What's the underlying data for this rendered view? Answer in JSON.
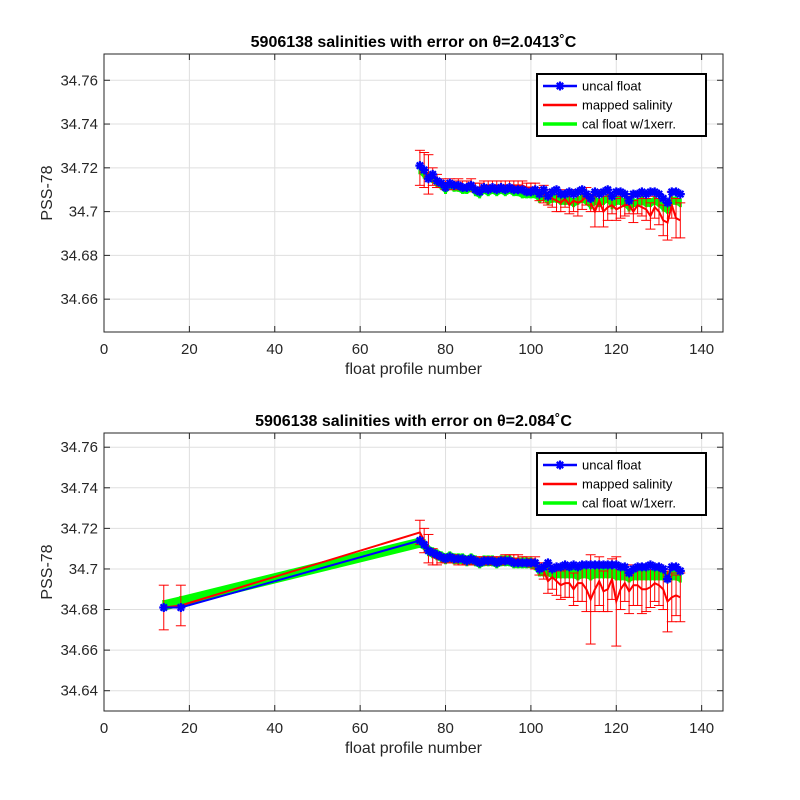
{
  "chart_data": [
    {
      "type": "line",
      "title": "5906138 salinities with error on θ=2.0413˚C",
      "xlabel": "float profile number",
      "ylabel": "PSS-78",
      "xlim": [
        0,
        145
      ],
      "ylim": [
        34.645,
        34.772
      ],
      "xticks": [
        0,
        20,
        40,
        60,
        80,
        100,
        120,
        140
      ],
      "xtick_labels": [
        "0",
        "20",
        "40",
        "60",
        "80",
        "100",
        "120",
        "140"
      ],
      "yticks": [
        34.66,
        34.68,
        34.7,
        34.72,
        34.74,
        34.76
      ],
      "ytick_labels": [
        "34.66",
        "34.68",
        "34.7",
        "34.72",
        "34.74",
        "34.76"
      ],
      "grid": true,
      "legend": {
        "position": "top-right",
        "entries": [
          "uncal float",
          "mapped salinity",
          "cal float w/1xerr."
        ]
      },
      "colors": {
        "uncal": "#0000ff",
        "mapped": "#ff0000",
        "cal": "#00ff00"
      },
      "x": [
        74,
        75,
        76,
        77,
        78,
        79,
        80,
        81,
        82,
        83,
        84,
        85,
        86,
        87,
        88,
        89,
        90,
        91,
        92,
        93,
        94,
        95,
        96,
        97,
        98,
        99,
        100,
        101,
        102,
        103,
        104,
        105,
        106,
        107,
        108,
        109,
        110,
        111,
        112,
        113,
        114,
        115,
        116,
        117,
        118,
        119,
        120,
        121,
        122,
        123,
        124,
        125,
        126,
        127,
        128,
        129,
        130,
        131,
        132,
        133,
        134,
        135
      ],
      "series": [
        {
          "name": "uncal float",
          "values": [
            34.721,
            34.719,
            34.715,
            34.717,
            34.714,
            34.713,
            34.711,
            34.713,
            34.712,
            34.712,
            34.711,
            34.711,
            34.712,
            34.71,
            34.709,
            34.711,
            34.71,
            34.711,
            34.71,
            34.711,
            34.71,
            34.711,
            34.71,
            34.71,
            34.71,
            34.709,
            34.709,
            34.71,
            34.708,
            34.71,
            34.707,
            34.709,
            34.71,
            34.708,
            34.708,
            34.709,
            34.708,
            34.709,
            34.71,
            34.708,
            34.706,
            34.709,
            34.708,
            34.709,
            34.71,
            34.707,
            34.709,
            34.709,
            34.708,
            34.705,
            34.708,
            34.708,
            34.709,
            34.708,
            34.709,
            34.709,
            34.708,
            34.706,
            34.704,
            34.709,
            34.709,
            34.708
          ]
        },
        {
          "name": "mapped salinity",
          "values": [
            34.72,
            34.719,
            34.717,
            34.716,
            34.714,
            34.713,
            34.712,
            34.713,
            34.712,
            34.713,
            34.712,
            34.712,
            34.713,
            34.711,
            34.711,
            34.712,
            34.712,
            34.712,
            34.712,
            34.712,
            34.712,
            34.712,
            34.712,
            34.712,
            34.712,
            34.711,
            34.711,
            34.711,
            34.708,
            34.708,
            34.706,
            34.706,
            34.705,
            34.704,
            34.706,
            34.703,
            34.705,
            34.704,
            34.705,
            34.707,
            34.704,
            34.7,
            34.705,
            34.7,
            34.702,
            34.703,
            34.701,
            34.702,
            34.703,
            34.703,
            34.7,
            34.703,
            34.702,
            34.701,
            34.698,
            34.702,
            34.7,
            34.696,
            34.695,
            34.703,
            34.697,
            34.696
          ],
          "errors": [
            0.008,
            0.008,
            0.009,
            0.004,
            0.003,
            0.002,
            0.002,
            0.002,
            0.002,
            0.002,
            0.002,
            0.002,
            0.002,
            0.002,
            0.002,
            0.002,
            0.002,
            0.002,
            0.002,
            0.002,
            0.002,
            0.002,
            0.002,
            0.002,
            0.002,
            0.002,
            0.002,
            0.002,
            0.003,
            0.004,
            0.003,
            0.004,
            0.005,
            0.004,
            0.004,
            0.004,
            0.005,
            0.006,
            0.004,
            0.004,
            0.004,
            0.007,
            0.005,
            0.007,
            0.006,
            0.004,
            0.005,
            0.005,
            0.005,
            0.004,
            0.005,
            0.004,
            0.004,
            0.005,
            0.006,
            0.005,
            0.006,
            0.007,
            0.008,
            0.006,
            0.009,
            0.008
          ]
        },
        {
          "name": "cal float w/1xerr.",
          "values": [
            34.719,
            34.717,
            34.716,
            34.715,
            34.713,
            34.712,
            34.71,
            34.712,
            34.711,
            34.711,
            34.71,
            34.71,
            34.711,
            34.709,
            34.708,
            34.71,
            34.709,
            34.71,
            34.709,
            34.71,
            34.709,
            34.71,
            34.709,
            34.709,
            34.708,
            34.708,
            34.708,
            34.708,
            34.706,
            34.707,
            34.705,
            34.706,
            34.706,
            34.705,
            34.705,
            34.705,
            34.704,
            34.705,
            34.706,
            34.705,
            34.703,
            34.705,
            34.704,
            34.705,
            34.706,
            34.703,
            34.705,
            34.705,
            34.704,
            34.702,
            34.704,
            34.704,
            34.705,
            34.704,
            34.704,
            34.705,
            34.704,
            34.702,
            34.701,
            34.705,
            34.705,
            34.704
          ],
          "band_halfwidth": 0.0015
        }
      ]
    },
    {
      "type": "line",
      "title": "5906138 salinities with error on θ=2.084˚C",
      "xlabel": "float profile number",
      "ylabel": "PSS-78",
      "xlim": [
        0,
        145
      ],
      "ylim": [
        34.63,
        34.767
      ],
      "xticks": [
        0,
        20,
        40,
        60,
        80,
        100,
        120,
        140
      ],
      "xtick_labels": [
        "0",
        "20",
        "40",
        "60",
        "80",
        "100",
        "120",
        "140"
      ],
      "yticks": [
        34.64,
        34.66,
        34.68,
        34.7,
        34.72,
        34.74,
        34.76
      ],
      "ytick_labels": [
        "34.64",
        "34.66",
        "34.68",
        "34.7",
        "34.72",
        "34.74",
        "34.76"
      ],
      "grid": true,
      "legend": {
        "position": "top-right",
        "entries": [
          "uncal float",
          "mapped salinity",
          "cal float w/1xerr."
        ]
      },
      "colors": {
        "uncal": "#0000ff",
        "mapped": "#ff0000",
        "cal": "#00ff00"
      },
      "x": [
        14,
        18,
        74,
        75,
        76,
        77,
        78,
        79,
        80,
        81,
        82,
        83,
        84,
        85,
        86,
        87,
        88,
        89,
        90,
        91,
        92,
        93,
        94,
        95,
        96,
        97,
        98,
        99,
        100,
        101,
        102,
        103,
        104,
        105,
        106,
        107,
        108,
        109,
        110,
        111,
        112,
        113,
        114,
        115,
        116,
        117,
        118,
        119,
        120,
        121,
        122,
        123,
        124,
        125,
        126,
        127,
        128,
        129,
        130,
        131,
        132,
        133,
        134,
        135
      ],
      "series": [
        {
          "name": "uncal float",
          "values": [
            34.681,
            34.681,
            34.714,
            34.712,
            34.709,
            34.708,
            34.707,
            34.706,
            34.705,
            34.706,
            34.705,
            34.705,
            34.705,
            34.704,
            34.705,
            34.704,
            34.703,
            34.704,
            34.704,
            34.704,
            34.703,
            34.704,
            34.704,
            34.704,
            34.703,
            34.703,
            34.703,
            34.703,
            34.703,
            34.703,
            34.7,
            34.701,
            34.703,
            34.7,
            34.701,
            34.701,
            34.702,
            34.701,
            34.702,
            34.701,
            34.702,
            34.702,
            34.702,
            34.702,
            34.702,
            34.702,
            34.702,
            34.702,
            34.702,
            34.701,
            34.701,
            34.698,
            34.7,
            34.701,
            34.701,
            34.701,
            34.702,
            34.701,
            34.701,
            34.7,
            34.695,
            34.701,
            34.701,
            34.699
          ]
        },
        {
          "name": "mapped salinity",
          "values": [
            34.681,
            34.682,
            34.718,
            34.714,
            34.71,
            34.706,
            34.705,
            34.705,
            34.705,
            34.705,
            34.705,
            34.704,
            34.704,
            34.704,
            34.704,
            34.704,
            34.704,
            34.704,
            34.704,
            34.704,
            34.704,
            34.704,
            34.705,
            34.705,
            34.705,
            34.705,
            34.704,
            34.704,
            34.703,
            34.703,
            34.7,
            34.699,
            34.694,
            34.696,
            34.694,
            34.692,
            34.693,
            34.693,
            34.69,
            34.693,
            34.693,
            34.69,
            34.685,
            34.69,
            34.694,
            34.689,
            34.69,
            34.695,
            34.684,
            34.69,
            34.693,
            34.689,
            34.692,
            34.692,
            34.69,
            34.69,
            34.691,
            34.693,
            34.692,
            34.69,
            34.684,
            34.686,
            34.687,
            34.686
          ],
          "errors": [
            0.011,
            0.01,
            0.006,
            0.006,
            0.007,
            0.004,
            0.003,
            0.002,
            0.002,
            0.002,
            0.002,
            0.002,
            0.002,
            0.002,
            0.002,
            0.002,
            0.002,
            0.002,
            0.002,
            0.002,
            0.002,
            0.002,
            0.002,
            0.002,
            0.002,
            0.002,
            0.002,
            0.002,
            0.002,
            0.003,
            0.003,
            0.004,
            0.006,
            0.006,
            0.007,
            0.007,
            0.007,
            0.007,
            0.008,
            0.009,
            0.009,
            0.011,
            0.022,
            0.011,
            0.012,
            0.01,
            0.011,
            0.01,
            0.022,
            0.01,
            0.009,
            0.011,
            0.01,
            0.01,
            0.012,
            0.011,
            0.01,
            0.009,
            0.01,
            0.01,
            0.015,
            0.012,
            0.01,
            0.012
          ]
        },
        {
          "name": "cal float w/1xerr.",
          "values": [
            34.682,
            34.684,
            34.713,
            34.712,
            34.709,
            34.708,
            34.707,
            34.706,
            34.705,
            34.706,
            34.705,
            34.705,
            34.705,
            34.704,
            34.705,
            34.704,
            34.703,
            34.704,
            34.704,
            34.704,
            34.703,
            34.704,
            34.704,
            34.704,
            34.703,
            34.703,
            34.703,
            34.703,
            34.703,
            34.702,
            34.699,
            34.699,
            34.699,
            34.698,
            34.698,
            34.698,
            34.698,
            34.698,
            34.698,
            34.697,
            34.698,
            34.698,
            34.697,
            34.698,
            34.698,
            34.698,
            34.698,
            34.698,
            34.697,
            34.697,
            34.697,
            34.696,
            34.697,
            34.697,
            34.697,
            34.697,
            34.697,
            34.697,
            34.697,
            34.697,
            34.696,
            34.697,
            34.697,
            34.696
          ],
          "band_halfwidth": 0.0022
        }
      ]
    }
  ]
}
